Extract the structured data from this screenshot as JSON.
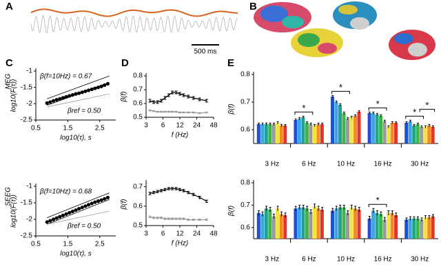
{
  "panel_labels": [
    "A",
    "B",
    "C",
    "D",
    "E"
  ],
  "row_labels": [
    "MEG",
    "SEEG"
  ],
  "scale_bar": "500 ms",
  "chart_data": [
    {
      "type": "scatter",
      "xlabel": "log10(τ), s",
      "ylabel": "log10(F(τ))",
      "xlim": [
        0.5,
        3
      ],
      "xticks": [
        0.5,
        1.5,
        2.5
      ],
      "ylim": [
        -2.5,
        -1
      ],
      "yticks": [
        -2.5,
        -2,
        -1.5,
        -1
      ],
      "color": "#000000",
      "x": [
        0.85,
        0.95,
        1.05,
        1.15,
        1.25,
        1.35,
        1.45,
        1.55,
        1.65,
        1.75,
        1.85,
        1.95,
        2.05,
        2.15,
        2.25,
        2.35,
        2.45,
        2.55,
        2.65,
        2.75
      ],
      "y": [
        -1.98,
        -1.95,
        -1.91,
        -1.88,
        -1.85,
        -1.82,
        -1.79,
        -1.76,
        -1.73,
        -1.7,
        -1.68,
        -1.65,
        -1.62,
        -1.59,
        -1.56,
        -1.53,
        -1.5,
        -1.47,
        -1.43,
        -1.39
      ],
      "lines": [
        {
          "color": "#000000",
          "x": [
            0.85,
            2.8
          ],
          "y": [
            -1.85,
            -1.15
          ]
        },
        {
          "color": "#000000",
          "x": [
            0.85,
            2.8
          ],
          "y": [
            -2.05,
            -1.35
          ]
        },
        {
          "color": "#999999",
          "x": [
            0.85,
            2.8
          ],
          "y": [
            -2.1,
            -1.7
          ]
        }
      ],
      "annotations": [
        "β(f=10Hz) = 0.67",
        "βref = 0.50"
      ]
    },
    {
      "type": "scatter",
      "xlabel": "log10(τ), s",
      "ylabel": "log10(F(τ))",
      "xlim": [
        0.5,
        3
      ],
      "xticks": [
        0.5,
        1.5,
        2.5
      ],
      "ylim": [
        -2.5,
        -1
      ],
      "yticks": [
        -2.5,
        -2,
        -1.5,
        -1
      ],
      "color": "#000000",
      "x": [
        0.85,
        0.95,
        1.05,
        1.15,
        1.25,
        1.35,
        1.45,
        1.55,
        1.65,
        1.75,
        1.85,
        1.95,
        2.05,
        2.15,
        2.25,
        2.35,
        2.45,
        2.55,
        2.65,
        2.75
      ],
      "y": [
        -2.08,
        -2.04,
        -2.0,
        -1.96,
        -1.92,
        -1.88,
        -1.84,
        -1.8,
        -1.76,
        -1.72,
        -1.68,
        -1.64,
        -1.6,
        -1.56,
        -1.52,
        -1.48,
        -1.45,
        -1.42,
        -1.38,
        -1.34
      ],
      "lines": [
        {
          "color": "#000000",
          "x": [
            0.85,
            2.8
          ],
          "y": [
            -1.95,
            -1.2
          ]
        },
        {
          "color": "#000000",
          "x": [
            0.85,
            2.8
          ],
          "y": [
            -2.15,
            -1.4
          ]
        },
        {
          "color": "#999999",
          "x": [
            0.85,
            2.8
          ],
          "y": [
            -2.15,
            -1.75
          ]
        }
      ],
      "annotations": [
        "β(f=10Hz) = 0.68",
        "βref = 0.50"
      ]
    },
    {
      "type": "line",
      "xlabel": "f (Hz)",
      "ylabel": "β(f)",
      "xscale": "log",
      "xlim": [
        3,
        48
      ],
      "xticks": [
        3,
        6,
        12,
        24,
        48
      ],
      "ylim": [
        0.5,
        0.8
      ],
      "yticks": [
        0.5,
        0.6,
        0.7,
        0.8
      ],
      "x": [
        3.5,
        4.1,
        4.8,
        5.6,
        6.5,
        7.6,
        8.8,
        10.3,
        12,
        14,
        17,
        21,
        27,
        36
      ],
      "series": [
        {
          "color": "#000000",
          "values": [
            0.62,
            0.61,
            0.61,
            0.62,
            0.64,
            0.66,
            0.68,
            0.68,
            0.67,
            0.66,
            0.65,
            0.64,
            0.63,
            0.62
          ],
          "errors": [
            0.01,
            0.01,
            0.01,
            0.01,
            0.01,
            0.01,
            0.01,
            0.01,
            0.01,
            0.01,
            0.01,
            0.01,
            0.01,
            0.01
          ]
        },
        {
          "color": "#999999",
          "values": [
            0.55,
            0.545,
            0.54,
            0.54,
            0.54,
            0.54,
            0.54,
            0.54,
            0.535,
            0.535,
            0.535,
            0.535,
            0.53,
            0.535
          ],
          "errors": [
            0.004,
            0.004,
            0.004,
            0.004,
            0.004,
            0.004,
            0.004,
            0.004,
            0.004,
            0.004,
            0.004,
            0.004,
            0.004,
            0.004
          ]
        }
      ]
    },
    {
      "type": "line",
      "xlabel": "f (Hz)",
      "ylabel": "β(f)",
      "xscale": "log",
      "xlim": [
        3,
        48
      ],
      "xticks": [
        3,
        6,
        12,
        24,
        48
      ],
      "ylim": [
        0.5,
        0.72
      ],
      "yticks": [
        0.5,
        0.6,
        0.7
      ],
      "x": [
        3.5,
        4.1,
        4.8,
        5.6,
        6.5,
        7.6,
        8.8,
        10.3,
        12,
        14,
        17,
        21,
        27,
        36
      ],
      "series": [
        {
          "color": "#000000",
          "values": [
            0.665,
            0.67,
            0.675,
            0.68,
            0.685,
            0.69,
            0.69,
            0.69,
            0.685,
            0.68,
            0.67,
            0.66,
            0.645,
            0.625
          ],
          "errors": [
            0.006,
            0.006,
            0.006,
            0.006,
            0.006,
            0.006,
            0.006,
            0.006,
            0.006,
            0.006,
            0.006,
            0.006,
            0.006,
            0.006
          ]
        },
        {
          "color": "#999999",
          "values": [
            0.545,
            0.54,
            0.54,
            0.54,
            0.535,
            0.535,
            0.535,
            0.535,
            0.535,
            0.535,
            0.53,
            0.53,
            0.53,
            0.53
          ],
          "errors": [
            0.004,
            0.004,
            0.004,
            0.004,
            0.004,
            0.004,
            0.004,
            0.004,
            0.004,
            0.004,
            0.004,
            0.004,
            0.004,
            0.004
          ]
        }
      ]
    },
    {
      "type": "bar",
      "ylabel": "β(f)",
      "ylim": [
        0.55,
        0.8
      ],
      "yticks": [
        0.6,
        0.7,
        0.8
      ],
      "categories": [
        "3 Hz",
        "6 Hz",
        "10 Hz",
        "16 Hz",
        "30 Hz"
      ],
      "series": [
        {
          "color": "#1f4fd6",
          "values": [
            0.62,
            0.635,
            0.72,
            0.66,
            0.625
          ],
          "errors": [
            0.004,
            0.004,
            0.004,
            0.004,
            0.004
          ]
        },
        {
          "color": "#3aa6ea",
          "values": [
            0.62,
            0.64,
            0.7,
            0.66,
            0.63
          ],
          "errors": [
            0.004,
            0.004,
            0.004,
            0.004,
            0.004
          ]
        },
        {
          "color": "#1fa58a",
          "values": [
            0.62,
            0.645,
            0.69,
            0.655,
            0.615
          ],
          "errors": [
            0.004,
            0.004,
            0.004,
            0.004,
            0.004
          ]
        },
        {
          "color": "#3cb54a",
          "values": [
            0.62,
            0.625,
            0.66,
            0.65,
            0.62
          ],
          "errors": [
            0.004,
            0.004,
            0.004,
            0.004,
            0.004
          ]
        },
        {
          "color": "#9a9a9a",
          "values": [
            0.62,
            0.62,
            0.64,
            0.63,
            0.61
          ],
          "errors": [
            0.004,
            0.004,
            0.004,
            0.004,
            0.004
          ]
        },
        {
          "color": "#f2e43a",
          "values": [
            0.625,
            0.615,
            0.645,
            0.61,
            0.61
          ],
          "errors": [
            0.004,
            0.004,
            0.004,
            0.004,
            0.004
          ]
        },
        {
          "color": "#f28c1e",
          "values": [
            0.615,
            0.62,
            0.65,
            0.625,
            0.615
          ],
          "errors": [
            0.004,
            0.004,
            0.004,
            0.004,
            0.004
          ]
        },
        {
          "color": "#e3342f",
          "values": [
            0.615,
            0.62,
            0.665,
            0.625,
            0.61
          ],
          "errors": [
            0.004,
            0.004,
            0.004,
            0.004,
            0.004
          ]
        }
      ],
      "significance": [
        {
          "text": "*",
          "categories": [
            1
          ]
        },
        {
          "text": "*",
          "categories": [
            2
          ]
        },
        {
          "text": "*",
          "categories": [
            3
          ]
        },
        {
          "text": "*",
          "categories": [
            4
          ]
        },
        {
          "text": "*",
          "categories": [
            4
          ]
        }
      ]
    },
    {
      "type": "bar",
      "ylabel": "β(f)",
      "ylim": [
        0.55,
        0.8
      ],
      "yticks": [
        0.6,
        0.7,
        0.8
      ],
      "categories": [
        "3 Hz",
        "6 Hz",
        "10 Hz",
        "16 Hz",
        "30 Hz"
      ],
      "series": [
        {
          "color": "#1f4fd6",
          "values": [
            0.665,
            0.685,
            0.675,
            0.64,
            0.635
          ],
          "errors": [
            0.01,
            0.01,
            0.01,
            0.01,
            0.008
          ]
        },
        {
          "color": "#3aa6ea",
          "values": [
            0.66,
            0.69,
            0.685,
            0.675,
            0.64
          ],
          "errors": [
            0.01,
            0.01,
            0.01,
            0.01,
            0.008
          ]
        },
        {
          "color": "#1fa58a",
          "values": [
            0.685,
            0.69,
            0.69,
            0.665,
            0.64
          ],
          "errors": [
            0.01,
            0.01,
            0.01,
            0.01,
            0.008
          ]
        },
        {
          "color": "#3cb54a",
          "values": [
            0.68,
            0.685,
            0.69,
            0.66,
            0.64
          ],
          "errors": [
            0.01,
            0.01,
            0.01,
            0.01,
            0.008
          ]
        },
        {
          "color": "#9a9a9a",
          "values": [
            0.65,
            0.67,
            0.665,
            0.635,
            0.635
          ],
          "errors": [
            0.01,
            0.01,
            0.01,
            0.01,
            0.008
          ]
        },
        {
          "color": "#f2e43a",
          "values": [
            0.685,
            0.695,
            0.69,
            0.665,
            0.645
          ],
          "errors": [
            0.01,
            0.01,
            0.01,
            0.01,
            0.008
          ]
        },
        {
          "color": "#f28c1e",
          "values": [
            0.66,
            0.685,
            0.685,
            0.665,
            0.645
          ],
          "errors": [
            0.01,
            0.01,
            0.01,
            0.01,
            0.008
          ]
        },
        {
          "color": "#e3342f",
          "values": [
            0.655,
            0.68,
            0.68,
            0.655,
            0.65
          ],
          "errors": [
            0.01,
            0.01,
            0.01,
            0.01,
            0.008
          ]
        }
      ],
      "significance": [
        {
          "text": "*",
          "categories": [
            3
          ]
        }
      ]
    }
  ]
}
